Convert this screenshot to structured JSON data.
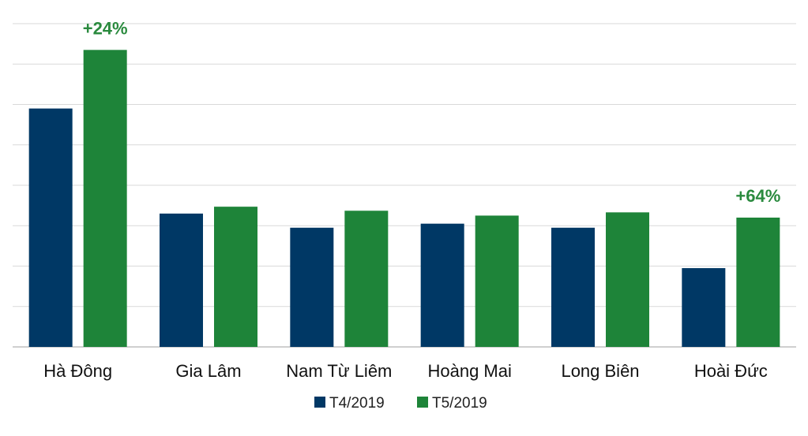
{
  "chart_data": {
    "type": "bar",
    "categories": [
      "Hà Đông",
      "Gia Lâm",
      "Nam Từ Liêm",
      "Hoàng Mai",
      "Long Biên",
      "Hoài Đức"
    ],
    "series": [
      {
        "name": "T4/2019",
        "values": [
          5.9,
          3.3,
          2.95,
          3.05,
          2.95,
          1.95
        ]
      },
      {
        "name": "T5/2019",
        "values": [
          7.35,
          3.47,
          3.37,
          3.25,
          3.33,
          3.2
        ]
      }
    ],
    "ylim": [
      0,
      8
    ],
    "grid": true,
    "legend_position": "bottom-center",
    "annotations": [
      {
        "text": "+24%",
        "category": "Hà Đông",
        "series": "T5/2019"
      },
      {
        "text": "+64%",
        "category": "Hoài Đức",
        "series": "T5/2019"
      }
    ],
    "colors": {
      "T4/2019": "#003865",
      "T5/2019": "#1e8439",
      "annotation": "#2a8a3e",
      "grid": "#d9d9d9",
      "axis": "#bfbfbf"
    }
  }
}
